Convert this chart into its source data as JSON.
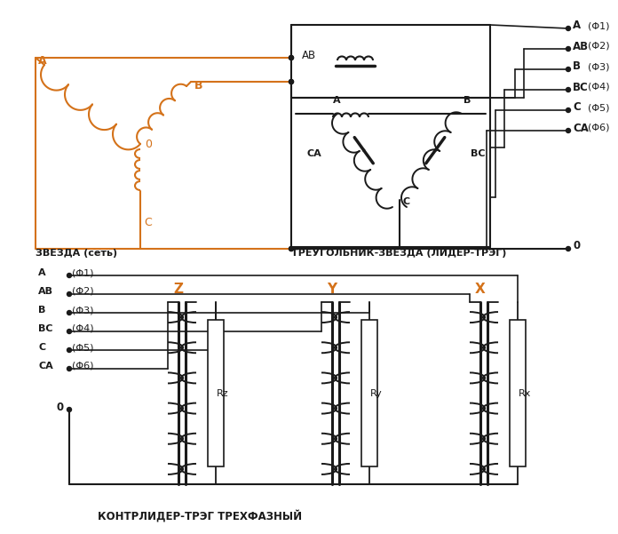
{
  "orange_color": "#D4721A",
  "black_color": "#1a1a1a",
  "bg_color": "#ffffff",
  "title1": "ЗВЕЗДА (сеть)",
  "title2": "ТРЕУГОЛЬНИК-ЗВЕЗДА (ЛИДЕР-ТРЭГ)",
  "title3": "КОНТРЛИДЕР-ТРЭГ ТРЕХФАЗНЫЙ",
  "right_labels": [
    "A",
    "AB",
    "B",
    "BC",
    "C",
    "CA"
  ],
  "right_phi": [
    "(Φ1)",
    "(Φ2)",
    "(Φ3)",
    "(Φ4)",
    "(Φ5)",
    "(Φ6)"
  ],
  "bottom_labels": [
    "A",
    "AB",
    "B",
    "BC",
    "C",
    "CA"
  ],
  "bottom_phi": [
    "(Φ1)",
    "(Φ2)",
    "(Φ3)",
    "(Φ4)",
    "(Φ5)",
    "(Φ6)"
  ],
  "resistor_labels": [
    "Rz",
    "Ry",
    "Rx"
  ],
  "inductor_labels": [
    "Z",
    "Y",
    "X"
  ]
}
